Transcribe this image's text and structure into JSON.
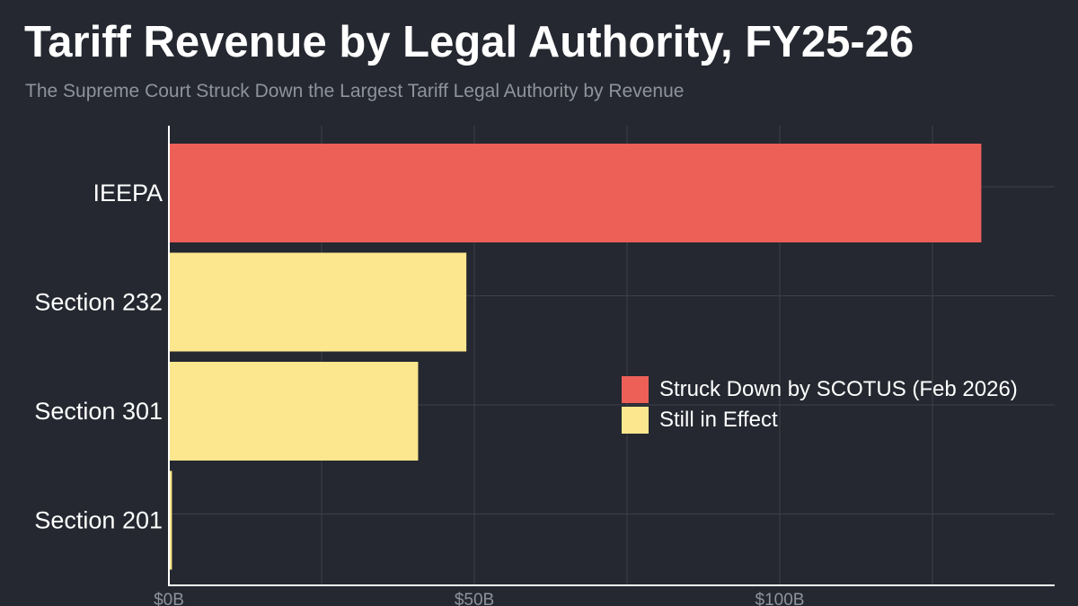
{
  "title": "Tariff Revenue by Legal Authority, FY25-26",
  "subtitle": "The Supreme Court Struck Down the Largest Tariff Legal Authority by Revenue",
  "colors": {
    "background": "#252830",
    "struck_down": "#ED6057",
    "in_effect": "#FDE78E",
    "grid": "#3d414a",
    "axis": "#ffffff",
    "tick_label": "#8f939b",
    "category_label": "#ffffff"
  },
  "chart_data": {
    "type": "bar",
    "orientation": "horizontal",
    "title": "Tariff Revenue by Legal Authority, FY25-26",
    "subtitle": "The Supreme Court Struck Down the Largest Tariff Legal Authority by Revenue",
    "xlabel": "",
    "ylabel": "",
    "categories": [
      "IEEPA",
      "Section 232",
      "Section 301",
      "Section 201"
    ],
    "values": [
      133,
      48.7,
      40.8,
      0.5
    ],
    "value_unit": "billion USD",
    "status": [
      "Struck Down by SCOTUS (Feb 2026)",
      "Still in Effect",
      "Still in Effect",
      "Still in Effect"
    ],
    "xlim": [
      0,
      145
    ],
    "xticks": [
      0,
      50,
      100
    ],
    "xtick_labels": [
      "$0B",
      "$50B",
      "$100B"
    ],
    "grid": true,
    "legend": {
      "position": "center-right",
      "entries": [
        {
          "label": "Struck Down by SCOTUS (Feb 2026)",
          "color": "#ED6057"
        },
        {
          "label": "Still in Effect",
          "color": "#FDE78E"
        }
      ]
    }
  }
}
